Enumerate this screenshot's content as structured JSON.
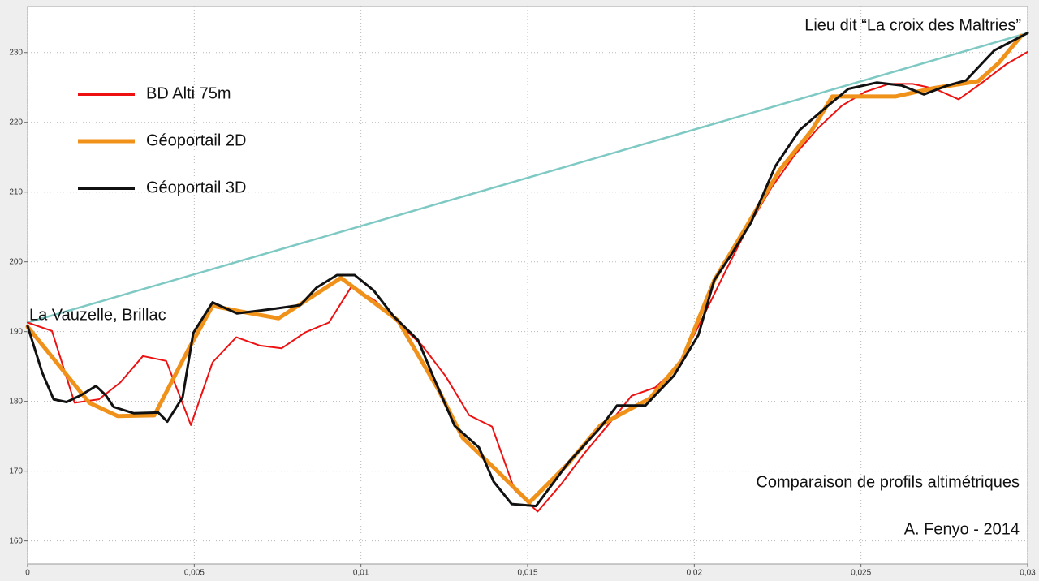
{
  "chart_data": {
    "type": "line",
    "annotations": [
      "Lieu dit “La croix des Maltries”",
      "La Vauzelle, Brillac",
      "Comparaison de profils altimétriques",
      "A. Fenyo - 2014"
    ],
    "xlim": [
      0,
      0.03
    ],
    "xticks": [
      0,
      {
        "value": 0.005,
        "label": "0,005"
      },
      {
        "value": 0.01,
        "label": "0,01"
      },
      {
        "value": 0.015,
        "label": "0,015"
      },
      {
        "value": 0.02,
        "label": "0,02"
      },
      {
        "value": 0.025,
        "label": "0,025"
      },
      {
        "value": 0.03,
        "label": "0,03"
      }
    ],
    "ylim": [
      156.7,
      236.6
    ],
    "yticks": [
      160,
      170,
      180,
      190,
      200,
      210,
      220,
      230
    ],
    "grid": true,
    "legend": "upper-left",
    "series": [
      {
        "color": "#7fc9c4",
        "width": 2.5,
        "x": [
          0,
          0.03
        ],
        "values": [
          191.3,
          232.8
        ]
      },
      {
        "name": "BD Alti 75m",
        "color": "#ee1111",
        "width": 2,
        "x": [
          0,
          0.00073,
          0.00141,
          0.00214,
          0.00278,
          0.00346,
          0.00416,
          0.0049,
          0.00555,
          0.00626,
          0.00697,
          0.00762,
          0.00833,
          0.00904,
          0.00972,
          0.01043,
          0.01113,
          0.01184,
          0.01254,
          0.01325,
          0.01393,
          0.01461,
          0.0153,
          0.016,
          0.01671,
          0.01741,
          0.01812,
          0.01883,
          0.01951,
          0.02021,
          0.02092,
          0.02163,
          0.02231,
          0.02301,
          0.02372,
          0.02443,
          0.02514,
          0.02584,
          0.02655,
          0.02723,
          0.02793,
          0.02864,
          0.02935,
          0.03
        ],
        "values": [
          191.3,
          190.1,
          179.8,
          180.3,
          182.7,
          186.5,
          185.8,
          176.6,
          185.6,
          189.2,
          188.0,
          187.6,
          189.9,
          191.3,
          196.5,
          194.4,
          191.2,
          188.0,
          183.6,
          178.0,
          176.4,
          167.3,
          164.2,
          168.1,
          172.6,
          176.6,
          180.8,
          182.0,
          185.0,
          191.6,
          198.5,
          205.2,
          210.6,
          215.3,
          219.2,
          222.4,
          224.4,
          225.5,
          225.5,
          224.8,
          223.3,
          225.7,
          228.3,
          230.1
        ]
      },
      {
        "name": "Géoportail 2D",
        "color": "#f0921a",
        "width": 5,
        "x": [
          0,
          0.00185,
          0.0027,
          0.0038,
          0.00482,
          0.00555,
          0.00648,
          0.00753,
          0.0094,
          0.01111,
          0.01232,
          0.01305,
          0.01403,
          0.01505,
          0.01622,
          0.01719,
          0.01866,
          0.01963,
          0.0206,
          0.02158,
          0.02255,
          0.02353,
          0.02414,
          0.02603,
          0.02718,
          0.02852,
          0.02913,
          0.02981
        ],
        "values": [
          190.7,
          179.8,
          177.9,
          178.0,
          187.4,
          193.7,
          192.8,
          191.9,
          197.7,
          191.6,
          181.7,
          174.8,
          170.3,
          165.5,
          171.1,
          176.6,
          180.4,
          185.9,
          197.4,
          205.2,
          213.1,
          218.9,
          223.7,
          223.7,
          224.9,
          225.9,
          228.5,
          232.4
        ]
      },
      {
        "name": "Géoportail 3D",
        "color": "#111111",
        "width": 3,
        "x": [
          0,
          0.00044,
          0.00078,
          0.00117,
          0.00161,
          0.00205,
          0.00234,
          0.00258,
          0.00319,
          0.00392,
          0.00419,
          0.00465,
          0.00497,
          0.00555,
          0.00628,
          0.00745,
          0.00818,
          0.00867,
          0.00928,
          0.00981,
          0.01038,
          0.01098,
          0.01171,
          0.0122,
          0.01281,
          0.01354,
          0.01398,
          0.01452,
          0.01525,
          0.01622,
          0.01719,
          0.01768,
          0.01853,
          0.01939,
          0.02012,
          0.0206,
          0.02109,
          0.0217,
          0.02243,
          0.02316,
          0.02389,
          0.02462,
          0.02548,
          0.02621,
          0.02689,
          0.02755,
          0.02815,
          0.029,
          0.03
        ],
        "values": [
          190.8,
          184.1,
          180.3,
          179.9,
          180.9,
          182.2,
          180.9,
          179.2,
          178.3,
          178.4,
          177.1,
          180.6,
          189.8,
          194.2,
          192.6,
          193.3,
          193.8,
          196.3,
          198.1,
          198.1,
          195.9,
          192.2,
          188.8,
          183.2,
          176.5,
          173.4,
          168.5,
          165.3,
          165.0,
          171.2,
          176.3,
          179.4,
          179.4,
          183.7,
          189.5,
          197.4,
          200.9,
          205.6,
          213.7,
          218.9,
          221.9,
          224.8,
          225.7,
          225.3,
          224.0,
          225.2,
          226.0,
          230.3,
          232.8
        ]
      }
    ]
  }
}
